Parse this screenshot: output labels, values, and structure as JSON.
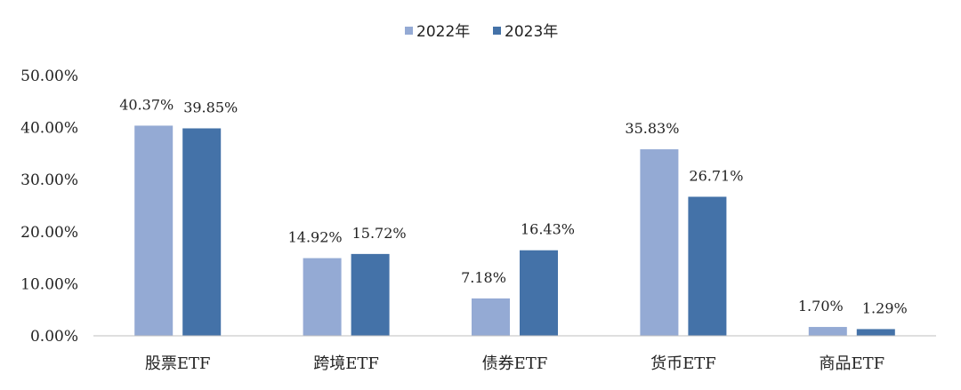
{
  "chart_data": {
    "type": "bar",
    "categories": [
      "股票ETF",
      "跨境ETF",
      "债券ETF",
      "货币ETF",
      "商品ETF"
    ],
    "series": [
      {
        "name": "2022年",
        "color": "#94aad4",
        "values": [
          40.37,
          14.92,
          7.18,
          35.83,
          1.7
        ],
        "labels": [
          "40.37%",
          "14.92%",
          "7.18%",
          "35.83%",
          "1.70%"
        ]
      },
      {
        "name": "2023年",
        "color": "#4472a8",
        "values": [
          39.85,
          15.72,
          16.43,
          26.71,
          1.29
        ],
        "labels": [
          "39.85%",
          "15.72%",
          "16.43%",
          "26.71%",
          "1.29%"
        ]
      }
    ],
    "yticks": [
      "0.00%",
      "10.00%",
      "20.00%",
      "30.00%",
      "40.00%",
      "50.00%"
    ],
    "ylim": [
      0,
      50
    ],
    "legend_position": "top-center",
    "grid": false
  }
}
